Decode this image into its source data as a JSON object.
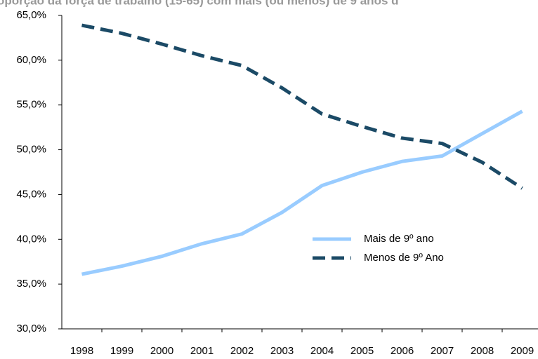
{
  "chart_data": {
    "type": "line",
    "title": "oporção da força de trabalho (15-65) com mais (ou menos) de 9 anos d",
    "categories": [
      "1998",
      "1999",
      "2000",
      "2001",
      "2002",
      "2003",
      "2004",
      "2005",
      "2006",
      "2007",
      "2008",
      "2009"
    ],
    "series": [
      {
        "name": "Mais de 9º ano",
        "color": "#99ccff",
        "dash": false,
        "values": [
          36.1,
          37.0,
          38.1,
          39.5,
          40.6,
          43.0,
          46.0,
          47.5,
          48.7,
          49.3,
          51.8,
          54.3
        ]
      },
      {
        "name": "Menos de 9º Ano",
        "color": "#1b4a66",
        "dash": true,
        "values": [
          63.9,
          63.0,
          61.8,
          60.5,
          59.4,
          56.9,
          54.0,
          52.6,
          51.3,
          50.7,
          48.6,
          45.7
        ]
      }
    ],
    "ylim": [
      30,
      65
    ],
    "yticks": [
      {
        "value": 30,
        "label": "30,0%"
      },
      {
        "value": 35,
        "label": "35,0%"
      },
      {
        "value": 40,
        "label": "40,0%"
      },
      {
        "value": 45,
        "label": "45,0%"
      },
      {
        "value": 50,
        "label": "50,0%"
      },
      {
        "value": 55,
        "label": "55,0%"
      },
      {
        "value": 60,
        "label": "60,0%"
      },
      {
        "value": 65,
        "label": "65,0%"
      }
    ],
    "grid": false
  }
}
